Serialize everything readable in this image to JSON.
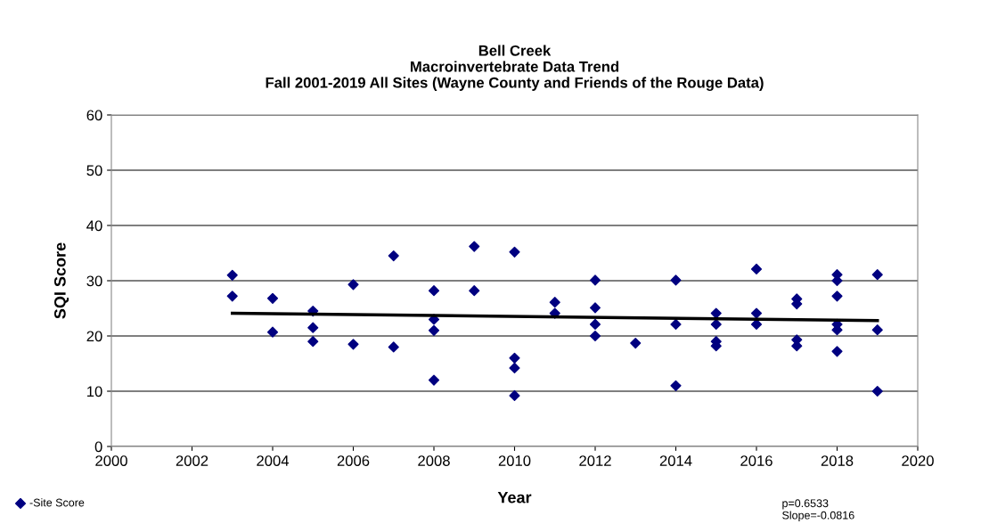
{
  "chart_data": {
    "type": "scatter",
    "title": "Bell Creek\nMacroinvertebrate Data Trend\nFall 2001-2019 All Sites (Wayne County and Friends of the Rouge Data)",
    "xlabel": "Year",
    "ylabel": "SQI Score",
    "xlim": [
      2000,
      2020
    ],
    "xticks": [
      2000,
      2002,
      2004,
      2006,
      2008,
      2010,
      2012,
      2014,
      2016,
      2018,
      2020
    ],
    "ylim": [
      0,
      60
    ],
    "yticks": [
      0,
      10,
      20,
      30,
      40,
      50,
      60
    ],
    "grid": "y",
    "legend": "bottom left",
    "series": [
      {
        "name": "-Site Score",
        "color": "#000080",
        "marker": "diamond",
        "x": [
          2003,
          2003,
          2004,
          2004,
          2005,
          2005,
          2005,
          2006,
          2006,
          2007,
          2007,
          2008,
          2008,
          2008,
          2008,
          2009,
          2009,
          2010,
          2010,
          2010,
          2010,
          2011,
          2011,
          2012,
          2012,
          2012,
          2012,
          2013,
          2014,
          2014,
          2014,
          2015,
          2015,
          2015,
          2015,
          2016,
          2016,
          2016,
          2017,
          2017,
          2017,
          2017,
          2018,
          2018,
          2018,
          2018,
          2018,
          2018,
          2019,
          2019,
          2019
        ],
        "values": [
          31,
          27.2,
          26.8,
          20.7,
          24.5,
          21.5,
          19,
          29.3,
          18.5,
          34.5,
          18,
          28.2,
          23,
          21,
          12,
          36.2,
          28.2,
          35.2,
          16,
          14.2,
          9.2,
          26.1,
          24.1,
          30.1,
          25.1,
          22.1,
          20,
          18.7,
          30.1,
          22.1,
          11,
          24.1,
          22.1,
          19,
          18.2,
          32.1,
          24.1,
          22.1,
          26.7,
          25.8,
          19.3,
          18.2,
          31.1,
          30,
          27.2,
          22.1,
          21.1,
          17.2,
          31.1,
          21.1,
          10
        ]
      },
      {
        "type": "line",
        "color": "#000000",
        "x": [
          2003,
          2019
        ],
        "values": [
          24.1,
          22.8
        ]
      }
    ],
    "annotations": [
      "p=0.6533\nSlope=-0.0816"
    ]
  }
}
